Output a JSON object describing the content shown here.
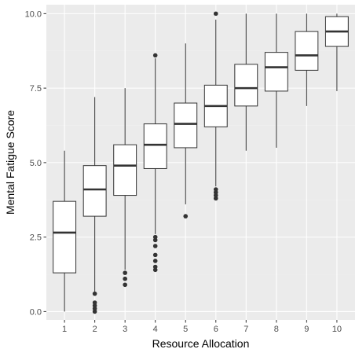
{
  "chart_data": {
    "type": "boxplot",
    "title": "",
    "xlabel": "Resource Allocation",
    "ylabel": "Mental Fatigue Score",
    "categories": [
      "1",
      "2",
      "3",
      "4",
      "5",
      "6",
      "7",
      "8",
      "9",
      "10"
    ],
    "ylim": [
      -0.28,
      10.3
    ],
    "y_ticks": [
      0.0,
      2.5,
      5.0,
      7.5,
      10.0
    ],
    "y_tick_labels": [
      "0.0",
      "2.5",
      "5.0",
      "7.5",
      "10.0"
    ],
    "grid": true,
    "legend": "none",
    "boxes": [
      {
        "category": "1",
        "min": 0.0,
        "q1": 1.3,
        "median": 2.65,
        "q3": 3.7,
        "max": 5.4,
        "outliers": []
      },
      {
        "category": "2",
        "min": 0.6,
        "q1": 3.2,
        "median": 4.1,
        "q3": 4.9,
        "max": 7.2,
        "outliers": [
          0.0,
          0.1,
          0.2,
          0.3,
          0.6
        ]
      },
      {
        "category": "3",
        "min": 1.4,
        "q1": 3.9,
        "median": 4.9,
        "q3": 5.6,
        "max": 7.5,
        "outliers": [
          0.9,
          1.1,
          1.3
        ]
      },
      {
        "category": "4",
        "min": 2.6,
        "q1": 4.8,
        "median": 5.6,
        "q3": 6.3,
        "max": 8.5,
        "outliers": [
          1.4,
          1.5,
          1.7,
          1.9,
          2.2,
          2.4,
          2.5,
          8.6
        ]
      },
      {
        "category": "5",
        "min": 3.6,
        "q1": 5.5,
        "median": 6.3,
        "q3": 7.0,
        "max": 9.0,
        "outliers": [
          3.2
        ]
      },
      {
        "category": "6",
        "min": 4.2,
        "q1": 6.2,
        "median": 6.9,
        "q3": 7.6,
        "max": 9.8,
        "outliers": [
          3.8,
          3.9,
          4.0,
          4.1,
          10.0
        ]
      },
      {
        "category": "7",
        "min": 5.4,
        "q1": 6.9,
        "median": 7.5,
        "q3": 8.3,
        "max": 10.0,
        "outliers": []
      },
      {
        "category": "8",
        "min": 5.5,
        "q1": 7.4,
        "median": 8.2,
        "q3": 8.7,
        "max": 10.0,
        "outliers": []
      },
      {
        "category": "9",
        "min": 6.9,
        "q1": 8.1,
        "median": 8.6,
        "q3": 9.4,
        "max": 10.0,
        "outliers": []
      },
      {
        "category": "10",
        "min": 7.4,
        "q1": 8.9,
        "median": 9.4,
        "q3": 9.9,
        "max": 10.0,
        "outliers": []
      }
    ],
    "colors": {
      "panel_background": "#ebebeb",
      "grid_major": "#ffffff",
      "grid_minor": "#f2f2f2",
      "box_fill": "#ffffff",
      "box_stroke": "#333333",
      "outlier": "#333333",
      "tick_text": "#4d4d4d",
      "axis_title": "#000000"
    }
  }
}
